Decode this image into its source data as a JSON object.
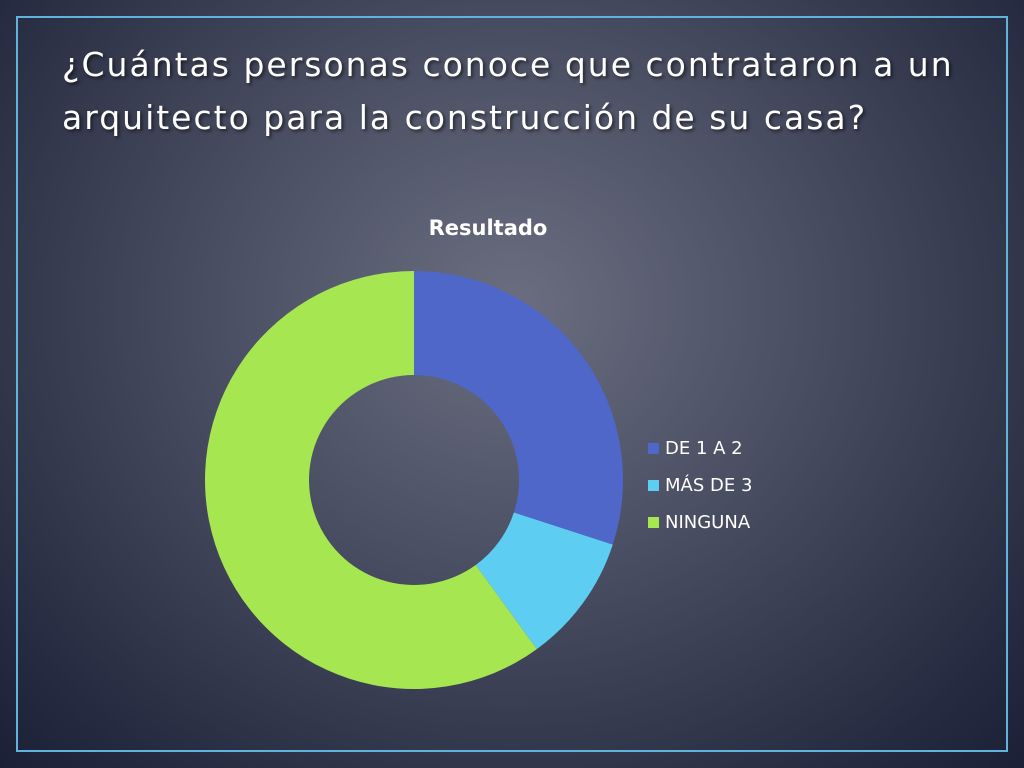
{
  "slide": {
    "title": "¿Cuántas personas conoce que contrataron a un arquitecto para la construcción de su casa?"
  },
  "chart_data": {
    "type": "pie",
    "subtype": "doughnut",
    "title": "Resultado",
    "categories": [
      "DE 1 A 2",
      "MÁS DE 3",
      "NINGUNA"
    ],
    "values": [
      30,
      10,
      60
    ],
    "colors": [
      "#4f67c8",
      "#5dcdf2",
      "#a6e651"
    ],
    "legend": "right"
  },
  "colors": {
    "frame": "#5fb4dc",
    "background": "#4b4f63",
    "text": "#ffffff"
  }
}
